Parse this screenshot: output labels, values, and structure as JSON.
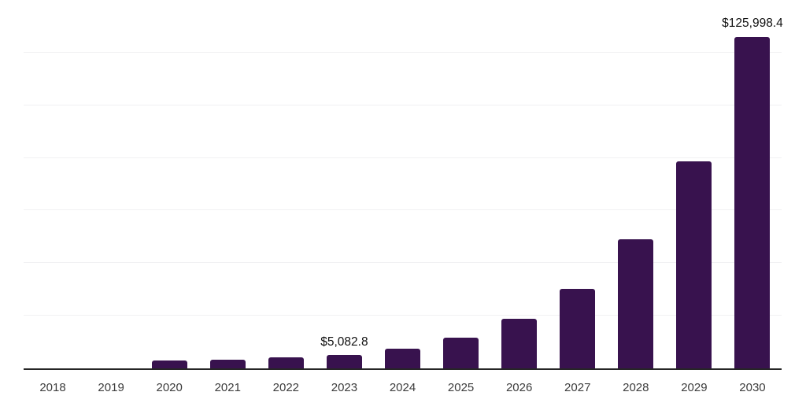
{
  "chart_data": {
    "type": "bar",
    "title": "",
    "xlabel": "",
    "ylabel": "",
    "categories": [
      "2018",
      "2019",
      "2020",
      "2021",
      "2022",
      "2023",
      "2024",
      "2025",
      "2026",
      "2027",
      "2028",
      "2029",
      "2030"
    ],
    "values": [
      80,
      140,
      2850,
      3150,
      4100,
      5082.8,
      7600,
      11800,
      19000,
      30300,
      49000,
      78600,
      125998.4
    ],
    "data_labels": [
      {
        "category": "2023",
        "text": "$5,082.8"
      },
      {
        "category": "2030",
        "text": "$125,998.4"
      }
    ],
    "ylim": [
      0,
      140000
    ],
    "gridline_step": 20000,
    "grid": "horizontal-only",
    "y_tick_labels": "none",
    "legend": "none",
    "colors": {
      "bar": "#38124E",
      "axis": "#262626",
      "gridline": "#F1F1F3",
      "tick_label": "#3C3C3C",
      "data_label": "#101010",
      "background": "#FFFFFF"
    }
  }
}
